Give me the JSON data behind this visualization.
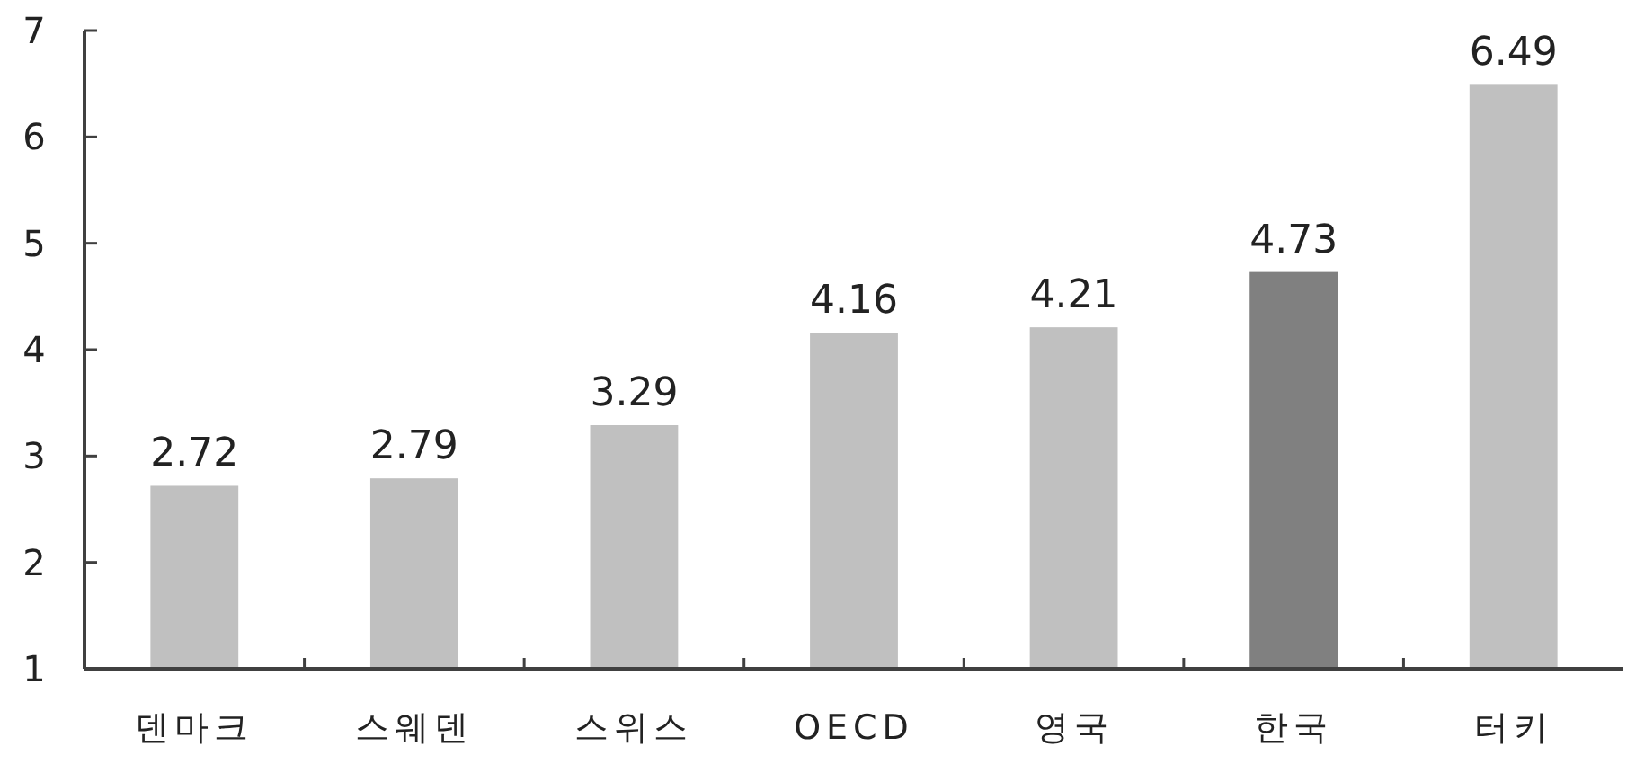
{
  "chart_data": {
    "type": "bar",
    "categories": [
      "덴마크",
      "스웨덴",
      "스위스",
      "OECD",
      "영국",
      "한국",
      "터키"
    ],
    "values": [
      2.72,
      2.79,
      3.29,
      4.16,
      4.21,
      4.73,
      6.49
    ],
    "colors": [
      "#c0c0c0",
      "#c0c0c0",
      "#c0c0c0",
      "#c0c0c0",
      "#c0c0c0",
      "#808080",
      "#c0c0c0"
    ],
    "ylim": [
      1,
      7
    ],
    "yticks": [
      1,
      2,
      3,
      4,
      5,
      6,
      7
    ],
    "data_labels": true
  }
}
